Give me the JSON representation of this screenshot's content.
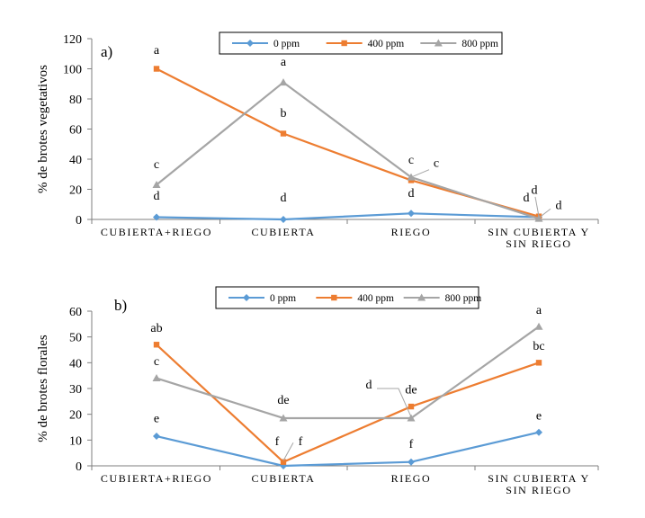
{
  "chart_data": [
    {
      "type": "line",
      "panel_label": "a)",
      "ylabel": "% de brotes vegetativos",
      "ylim": [
        0,
        120
      ],
      "yticks": [
        0,
        20,
        40,
        60,
        80,
        100,
        120
      ],
      "categories": [
        "CUBIERTA+RIEGO",
        "CUBIERTA",
        "RIEGO",
        "SIN CUBIERTA Y SIN RIEGO"
      ],
      "category_lines": [
        [
          "CUBIERTA+RIEGO"
        ],
        [
          "CUBIERTA"
        ],
        [
          "RIEGO"
        ],
        [
          "SIN CUBIERTA Y",
          "SIN RIEGO"
        ]
      ],
      "legend_position": "top-center",
      "series": [
        {
          "name": "0 ppm",
          "color": "#5B9BD5",
          "marker": "diamond",
          "values": [
            1.5,
            0,
            4,
            1.5
          ]
        },
        {
          "name": "400 ppm",
          "color": "#ED7D31",
          "marker": "square",
          "values": [
            100,
            57,
            26,
            2
          ]
        },
        {
          "name": "800 ppm",
          "color": "#A5A5A5",
          "marker": "triangle",
          "values": [
            23,
            91,
            28,
            0.5
          ]
        }
      ],
      "annotations": [
        {
          "text": "a",
          "category": 0,
          "y": 110
        },
        {
          "text": "c",
          "category": 0,
          "y": 34
        },
        {
          "text": "d",
          "category": 0,
          "y": 13
        },
        {
          "text": "a",
          "category": 1,
          "y": 102
        },
        {
          "text": "b",
          "category": 1,
          "y": 68
        },
        {
          "text": "d",
          "category": 1,
          "y": 12
        },
        {
          "text": "c",
          "category": 2,
          "y": 37
        },
        {
          "text": "c",
          "category": 2,
          "y": 35,
          "dx": 28
        },
        {
          "text": "d",
          "category": 2,
          "y": 15
        },
        {
          "text": "d",
          "category": 3,
          "y": 12,
          "dx": -14
        },
        {
          "text": "d",
          "category": 3,
          "y": 17,
          "dx": -5
        },
        {
          "text": "d",
          "category": 3,
          "y": 7,
          "dx": 22
        }
      ],
      "leader_lines": [
        {
          "category": 2,
          "from_y": 28,
          "to_y": 33,
          "to_dx": 20
        },
        {
          "category": 3,
          "from_y": 2,
          "to_y": 15,
          "to_dx": -4
        },
        {
          "category": 3,
          "from_y": 1,
          "to_y": 7,
          "to_dx": 13
        }
      ]
    },
    {
      "type": "line",
      "panel_label": "b)",
      "ylabel": "% de brotes florales",
      "ylim": [
        0,
        60
      ],
      "yticks": [
        0,
        10,
        20,
        30,
        40,
        50,
        60
      ],
      "categories": [
        "CUBIERTA+RIEGO",
        "CUBIERTA",
        "RIEGO",
        "SIN CUBIERTA Y SIN RIEGO"
      ],
      "category_lines": [
        [
          "CUBIERTA+RIEGO"
        ],
        [
          "CUBIERTA"
        ],
        [
          "RIEGO"
        ],
        [
          "SIN CUBIERTA Y",
          "SIN RIEGO"
        ]
      ],
      "legend_position": "top-center",
      "series": [
        {
          "name": "0 ppm",
          "color": "#5B9BD5",
          "marker": "diamond",
          "values": [
            11.5,
            0,
            1.5,
            13
          ]
        },
        {
          "name": "400 ppm",
          "color": "#ED7D31",
          "marker": "square",
          "values": [
            47,
            1.5,
            23,
            40
          ]
        },
        {
          "name": "800 ppm",
          "color": "#A5A5A5",
          "marker": "triangle",
          "values": [
            34,
            18.5,
            18.5,
            54
          ]
        }
      ],
      "annotations": [
        {
          "text": "ab",
          "category": 0,
          "y": 52
        },
        {
          "text": "c",
          "category": 0,
          "y": 39
        },
        {
          "text": "e",
          "category": 0,
          "y": 17
        },
        {
          "text": "de",
          "category": 1,
          "y": 24
        },
        {
          "text": "f",
          "category": 1,
          "y": 8,
          "dx": -7
        },
        {
          "text": "f",
          "category": 1,
          "y": 8,
          "dx": 19
        },
        {
          "text": "d",
          "category": 2,
          "y": 30,
          "dx": -47
        },
        {
          "text": "de",
          "category": 2,
          "y": 28
        },
        {
          "text": "f",
          "category": 2,
          "y": 7
        },
        {
          "text": "a",
          "category": 3,
          "y": 59
        },
        {
          "text": "bc",
          "category": 3,
          "y": 45
        },
        {
          "text": "e",
          "category": 3,
          "y": 18
        }
      ],
      "leader_lines": [
        {
          "category": 1,
          "from_y": 2,
          "to_y": 9,
          "to_dx": 11
        },
        {
          "category": 2,
          "from_y": 19,
          "to_y": 30,
          "to_dx": -38,
          "elbow_dx": -14
        }
      ]
    }
  ]
}
